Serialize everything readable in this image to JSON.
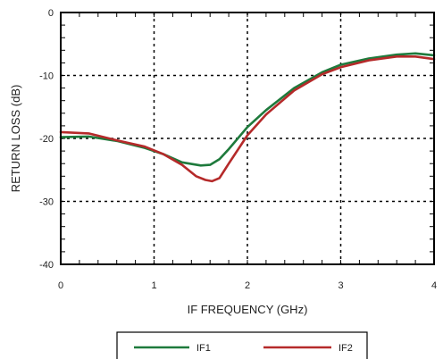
{
  "chart_data": {
    "type": "line",
    "title": "",
    "xlabel": "IF FREQUENCY (GHz)",
    "ylabel": "RETURN LOSS (dB)",
    "xlim": [
      0,
      4
    ],
    "ylim": [
      -40,
      0
    ],
    "xticks": [
      "0",
      "1",
      "2",
      "3",
      "4"
    ],
    "yticks": [
      "0",
      "-10",
      "-20",
      "-30",
      "-40"
    ],
    "grid": "dotted",
    "legend_position": "bottom",
    "series": [
      {
        "name": "IF1",
        "color": "#1e7a3c",
        "x": [
          0,
          0.3,
          0.6,
          0.9,
          1.1,
          1.3,
          1.5,
          1.6,
          1.7,
          1.8,
          2.0,
          2.2,
          2.5,
          2.8,
          3.0,
          3.3,
          3.6,
          3.8,
          4.0
        ],
        "y": [
          -19.8,
          -19.7,
          -20.4,
          -21.5,
          -22.5,
          -23.8,
          -24.3,
          -24.2,
          -23.3,
          -21.7,
          -18.2,
          -15.5,
          -12.0,
          -9.5,
          -8.3,
          -7.3,
          -6.7,
          -6.5,
          -6.8
        ]
      },
      {
        "name": "IF2",
        "color": "#b52a2a",
        "x": [
          0,
          0.3,
          0.6,
          0.9,
          1.1,
          1.3,
          1.45,
          1.55,
          1.62,
          1.7,
          1.8,
          2.0,
          2.2,
          2.5,
          2.8,
          3.0,
          3.3,
          3.6,
          3.8,
          4.0
        ],
        "y": [
          -19.0,
          -19.2,
          -20.3,
          -21.3,
          -22.5,
          -24.2,
          -26.0,
          -26.6,
          -26.8,
          -26.3,
          -24.0,
          -19.5,
          -16.2,
          -12.4,
          -9.8,
          -8.7,
          -7.6,
          -7.0,
          -7.0,
          -7.4
        ]
      }
    ]
  }
}
